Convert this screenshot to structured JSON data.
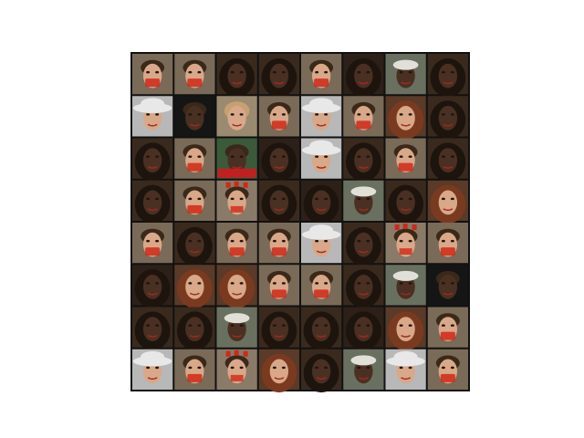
{
  "grid": {
    "rows": 8,
    "cols": 8,
    "tiles": [
      [
        "man-red-mouth",
        "man-red-mouth",
        "woman-long-dark-hair",
        "woman-long-dark-hair",
        "man-red-mouth",
        "woman-dark-hair",
        "man-dark-skin-cap",
        "woman-long-dark-hair"
      ],
      [
        "person-white-hat",
        "dark-face",
        "man-light-hair",
        "man-red-mouth",
        "person-white-hat",
        "man-red-mouth",
        "woman-auburn-hair",
        "woman-long-dark-hair"
      ],
      [
        "woman-long-dark-hair",
        "man-red-mouth",
        "man-dark-skin-red-shirt",
        "woman-dark-hair",
        "person-white-hat",
        "woman-long-dark-hair",
        "man-red-mouth",
        "woman-long-dark-hair"
      ],
      [
        "woman-long-dark-hair",
        "man-red-mouth",
        "face-red-artifacts",
        "woman-long-dark-hair",
        "woman-dark-hair",
        "man-dark-skin-cap",
        "woman-long-dark-hair",
        "woman-auburn-hair"
      ],
      [
        "man-red-mouth",
        "woman-long-dark-hair",
        "man-red-mouth",
        "man-red-mouth",
        "person-white-hat",
        "woman-long-dark-hair",
        "face-red-artifacts",
        "man-red-mouth"
      ],
      [
        "woman-dark-hair",
        "woman-auburn-hair",
        "woman-auburn-hair",
        "man-red-mouth",
        "man-red-mouth",
        "woman-long-dark-hair",
        "man-dark-skin-cap",
        "dark-face"
      ],
      [
        "woman-long-dark-hair",
        "woman-long-dark-hair",
        "man-dark-skin-cap",
        "woman-long-dark-hair",
        "woman-long-dark-hair",
        "woman-dark-hair",
        "woman-auburn-hair",
        "man-red-mouth"
      ],
      [
        "person-white-hat",
        "man-red-mouth",
        "face-red-artifacts",
        "woman-auburn-hair",
        "woman-long-dark-hair",
        "man-dark-skin-cap",
        "person-white-hat",
        "man-red-mouth"
      ]
    ]
  },
  "palette": {
    "figure_background": "#ffffff",
    "grid_border": "#111111",
    "tile_backgrounds": {
      "man-red-mouth": "#7a6a58",
      "woman-long-dark-hair": "#3a2a1e",
      "woman-dark-hair": "#2c2018",
      "woman-auburn-hair": "#5a3a28",
      "man-dark-skin-cap": "#6a7060",
      "man-dark-skin-red-shirt": "#3a5a3a",
      "person-white-hat": "#b8b8b8",
      "dark-face": "#151515",
      "man-light-hair": "#9a8a70",
      "face-red-artifacts": "#8a7a68"
    },
    "skin_light": "#d8a888",
    "skin_dark": "#4a3022",
    "hair_dark": "#1e140e",
    "hair_auburn": "#7a3a20",
    "hat_white": "#e8e8e8",
    "red_artifact": "#d02818",
    "shirt_red": "#c02020"
  }
}
